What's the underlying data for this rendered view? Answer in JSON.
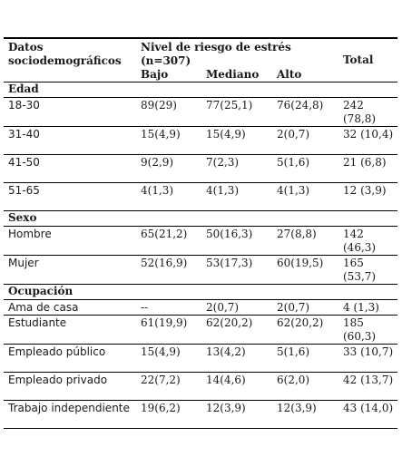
{
  "table": {
    "header": {
      "col1": "Datos sociodemográficos",
      "group": "Nivel de riesgo de estrés (n=307)",
      "sub": [
        "Bajo",
        "Mediano",
        "Alto"
      ],
      "total": "Total"
    },
    "sections": [
      {
        "title": "Edad",
        "rows": [
          {
            "label": "18-30",
            "bajo": "89(29)",
            "mediano": "77(25,1)",
            "alto": "76(24,8)",
            "total": "242 (78,8)"
          },
          {
            "label": "31-40",
            "bajo": "15(4,9)",
            "mediano": "15(4,9)",
            "alto": "2(0,7)",
            "total": "32 (10,4)"
          },
          {
            "label": "41-50",
            "bajo": "9(2,9)",
            "mediano": "7(2,3)",
            "alto": "5(1,6)",
            "total": "21 (6,8)"
          },
          {
            "label": "51-65",
            "bajo": "4(1,3)",
            "mediano": "4(1,3)",
            "alto": "4(1,3)",
            "total": "12 (3,9)"
          }
        ]
      },
      {
        "title": "Sexo",
        "rows": [
          {
            "label": "Hombre",
            "bajo": "65(21,2)",
            "mediano": "50(16,3)",
            "alto": "27(8,8)",
            "total": "142 (46,3)"
          },
          {
            "label": "Mujer",
            "bajo": "52(16,9)",
            "mediano": "53(17,3)",
            "alto": "60(19,5)",
            "total": "165 (53,7)"
          }
        ]
      },
      {
        "title": "Ocupación",
        "rows": [
          {
            "label": "Ama de casa",
            "bajo": "--",
            "mediano": "2(0,7)",
            "alto": "2(0,7)",
            "total": "4 (1,3)"
          },
          {
            "label": "Estudiante",
            "bajo": "61(19,9)",
            "mediano": "62(20,2)",
            "alto": "62(20,2)",
            "total": "185 (60,3)"
          },
          {
            "label": "Empleado público",
            "bajo": "15(4,9)",
            "mediano": "13(4,2)",
            "alto": "5(1,6)",
            "total": "33 (10,7)"
          },
          {
            "label": "Empleado privado",
            "bajo": "22(7,2)",
            "mediano": "14(4,6)",
            "alto": "6(2,0)",
            "total": "42 (13,7)"
          },
          {
            "label": "Trabajo independiente",
            "bajo": "19(6,2)",
            "mediano": "12(3,9)",
            "alto": "12(3,9)",
            "total": "43 (14,0)"
          }
        ]
      }
    ]
  }
}
